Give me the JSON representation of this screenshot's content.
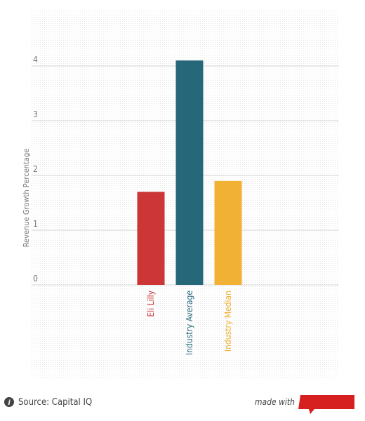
{
  "chart_data": {
    "type": "bar",
    "categories": [
      "Eli Lilly",
      "Industry Average",
      "Industry Median"
    ],
    "values": [
      1.7,
      4.1,
      1.9
    ],
    "colors": [
      "#cc3636",
      "#26687a",
      "#f0b135"
    ],
    "y_label": "Revenue Growth Percentage",
    "ylim": [
      0,
      5
    ],
    "yticks": [
      0,
      1,
      2,
      3,
      4
    ],
    "grid": true
  },
  "footer": {
    "source": "Source: Capital IQ",
    "credit": "made with"
  }
}
